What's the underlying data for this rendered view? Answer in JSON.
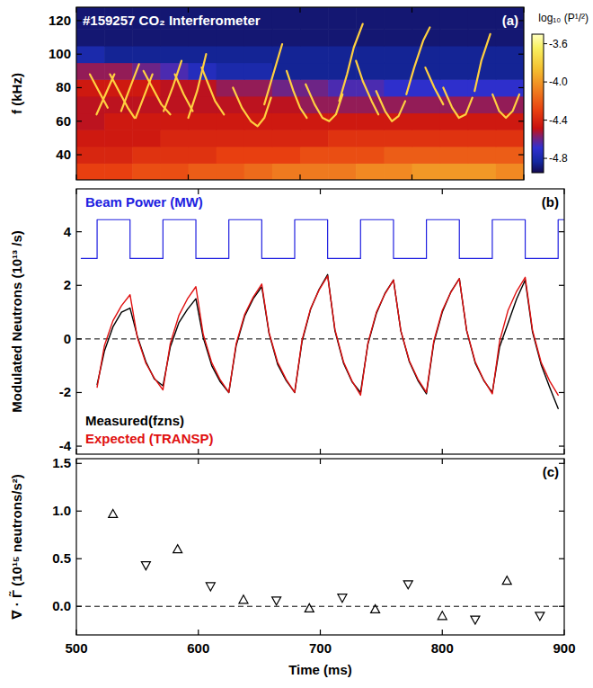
{
  "chart_data": [
    {
      "type": "heatmap",
      "title": "#159257 CO₂ Interferometer",
      "panel_label": "(a)",
      "ylabel": "f (kHz)",
      "xlim": [
        500,
        900
      ],
      "xticks": [
        500,
        600,
        700,
        800,
        900
      ],
      "ylim": [
        25,
        128
      ],
      "yticks": [
        40,
        60,
        80,
        100,
        120
      ],
      "tick_labels": "y",
      "x_edges": [
        500,
        525,
        550,
        575,
        600,
        625,
        650,
        675,
        700,
        725,
        750,
        775,
        800,
        825,
        850,
        875,
        900
      ],
      "y_edges": [
        25,
        35,
        45,
        55,
        65,
        75,
        85,
        95,
        105,
        115,
        128
      ],
      "cells": [
        [
          -4.3,
          -4.3,
          -4.25,
          -4.25,
          -4.2,
          -4.2,
          -4.15,
          -4.1,
          -4.1,
          -4.1,
          -4.05,
          -4.05,
          -4.0,
          -4.0,
          -4.0,
          -4.05
        ],
        [
          -4.4,
          -4.4,
          -4.35,
          -4.35,
          -4.35,
          -4.3,
          -4.3,
          -4.3,
          -4.25,
          -4.25,
          -4.25,
          -4.2,
          -4.2,
          -4.2,
          -4.2,
          -4.2
        ],
        [
          -4.45,
          -4.45,
          -4.45,
          -4.4,
          -4.4,
          -4.4,
          -4.4,
          -4.4,
          -4.4,
          -4.35,
          -4.35,
          -4.35,
          -4.35,
          -4.35,
          -4.35,
          -4.35
        ],
        [
          -4.5,
          -4.45,
          -4.45,
          -4.45,
          -4.45,
          -4.45,
          -4.45,
          -4.45,
          -4.45,
          -4.45,
          -4.45,
          -4.45,
          -4.45,
          -4.45,
          -4.45,
          -4.45
        ],
        [
          -4.5,
          -4.5,
          -4.5,
          -4.5,
          -4.5,
          -4.5,
          -4.5,
          -4.5,
          -4.55,
          -4.55,
          -4.55,
          -4.55,
          -4.55,
          -4.55,
          -4.55,
          -4.55
        ],
        [
          -4.45,
          -4.45,
          -4.45,
          -4.5,
          -4.5,
          -4.55,
          -4.55,
          -4.6,
          -4.6,
          -4.65,
          -4.65,
          -4.7,
          -4.7,
          -4.7,
          -4.7,
          -4.7
        ],
        [
          -4.55,
          -4.55,
          -4.6,
          -4.65,
          -4.75,
          -4.8,
          -4.8,
          -4.85,
          -4.85,
          -4.85,
          -4.85,
          -4.85,
          -4.85,
          -4.85,
          -4.85,
          -4.85
        ],
        [
          -4.8,
          -4.85,
          -4.85,
          -4.85,
          -4.85,
          -4.85,
          -4.85,
          -4.85,
          -4.85,
          -4.85,
          -4.85,
          -4.85,
          -4.85,
          -4.85,
          -4.85,
          -4.85
        ],
        [
          -4.9,
          -4.9,
          -4.9,
          -4.9,
          -4.9,
          -4.9,
          -4.9,
          -4.9,
          -4.9,
          -4.9,
          -4.9,
          -4.9,
          -4.9,
          -4.9,
          -4.9,
          -4.9
        ],
        [
          -4.9,
          -4.9,
          -4.9,
          -4.9,
          -4.9,
          -4.9,
          -4.9,
          -4.9,
          -4.9,
          -4.9,
          -4.9,
          -4.9,
          -4.9,
          -4.9,
          -4.9,
          -4.9
        ]
      ],
      "colorbar_label": "log₁₀ (P¹/²)",
      "colorbar_range": [
        -4.95,
        -3.5
      ],
      "colorbar_ticks": [
        -3.6,
        {
          "value": -4,
          "label": "-4.0"
        },
        -4.4,
        -4.8
      ],
      "series": [
        {
          "type": "line",
          "color": "#ffd040",
          "x": [
            512,
            520,
            528
          ],
          "values": [
            88,
            78,
            68
          ]
        },
        {
          "type": "line",
          "color": "#ffd040",
          "x": [
            518,
            526,
            534
          ],
          "values": [
            64,
            76,
            88
          ]
        },
        {
          "type": "line",
          "color": "#ffd040",
          "x": [
            530,
            538,
            546,
            552
          ],
          "values": [
            88,
            78,
            68,
            62
          ]
        },
        {
          "type": "line",
          "color": "#ffd040",
          "x": [
            540,
            548,
            556
          ],
          "values": [
            66,
            80,
            94
          ]
        },
        {
          "type": "line",
          "color": "#ffd040",
          "x": [
            553,
            560,
            568
          ],
          "values": [
            62,
            74,
            88
          ]
        },
        {
          "type": "line",
          "color": "#ffd040",
          "x": [
            560,
            568,
            576,
            584
          ],
          "values": [
            90,
            80,
            70,
            64
          ]
        },
        {
          "type": "line",
          "color": "#ffd040",
          "x": [
            578,
            586,
            594
          ],
          "values": [
            66,
            80,
            96
          ]
        },
        {
          "type": "line",
          "color": "#ffd040",
          "x": [
            588,
            596,
            604
          ],
          "values": [
            88,
            76,
            66
          ]
        },
        {
          "type": "line",
          "color": "#ffd040",
          "x": [
            600,
            608,
            616
          ],
          "values": [
            62,
            78,
            100
          ]
        },
        {
          "type": "line",
          "color": "#ffd040",
          "x": [
            612,
            618,
            624,
            632
          ],
          "values": [
            92,
            82,
            72,
            64
          ]
        },
        {
          "type": "line",
          "color": "#ffd040",
          "x": [
            640,
            648,
            656,
            662,
            668,
            674
          ],
          "values": [
            80,
            68,
            60,
            57,
            62,
            74
          ]
        },
        {
          "type": "line",
          "color": "#ffd040",
          "x": [
            668,
            676,
            684
          ],
          "values": [
            70,
            88,
            106
          ]
        },
        {
          "type": "line",
          "color": "#ffd040",
          "x": [
            688,
            694,
            700,
            706
          ],
          "values": [
            90,
            78,
            68,
            62
          ]
        },
        {
          "type": "line",
          "color": "#ffd040",
          "x": [
            705,
            713,
            720,
            726,
            732,
            738
          ],
          "values": [
            82,
            70,
            62,
            60,
            64,
            76
          ]
        },
        {
          "type": "line",
          "color": "#ffd040",
          "x": [
            735,
            742,
            748,
            756
          ],
          "values": [
            72,
            88,
            104,
            118
          ]
        },
        {
          "type": "line",
          "color": "#ffd040",
          "x": [
            750,
            756,
            764,
            770
          ],
          "values": [
            96,
            84,
            72,
            64
          ]
        },
        {
          "type": "line",
          "color": "#ffd040",
          "x": [
            768,
            776,
            782,
            788,
            794
          ],
          "values": [
            78,
            66,
            60,
            63,
            72
          ]
        },
        {
          "type": "line",
          "color": "#ffd040",
          "x": [
            795,
            802,
            810,
            816
          ],
          "values": [
            76,
            92,
            108,
            116
          ]
        },
        {
          "type": "line",
          "color": "#ffd040",
          "x": [
            812,
            820,
            828
          ],
          "values": [
            92,
            80,
            70
          ]
        },
        {
          "type": "line",
          "color": "#ffd040",
          "x": [
            828,
            836,
            842,
            848,
            854
          ],
          "values": [
            80,
            68,
            62,
            64,
            74
          ]
        },
        {
          "type": "line",
          "color": "#ffd040",
          "x": [
            856,
            862,
            870
          ],
          "values": [
            78,
            96,
            112
          ]
        },
        {
          "type": "line",
          "color": "#ffd040",
          "x": [
            872,
            878,
            884,
            890,
            896
          ],
          "values": [
            76,
            66,
            62,
            66,
            76
          ]
        }
      ]
    },
    {
      "type": "line",
      "panel_label": "(b)",
      "ylabel": "Modulated Neutrons (10¹³ /s)",
      "xlim": [
        500,
        900
      ],
      "xticks": [
        500,
        600,
        700,
        800,
        900
      ],
      "ylim": [
        -4.3,
        5.6
      ],
      "yticks": [
        -4,
        -2,
        0,
        2,
        4
      ],
      "tick_labels": "y",
      "hlines": [
        0
      ],
      "legend": "lower left",
      "series": [
        {
          "name": "Beam Power (MW)",
          "color": "#2020e0",
          "line_style": "solid",
          "x": [
            504,
            517,
            517,
            544,
            544,
            571,
            571,
            598,
            598,
            625,
            625,
            652,
            652,
            679,
            679,
            706,
            706,
            733,
            733,
            760,
            760,
            787,
            787,
            814,
            814,
            841,
            841,
            868,
            868,
            895,
            895,
            900
          ],
          "values": [
            3.0,
            3.0,
            4.45,
            4.45,
            3.0,
            3.0,
            4.45,
            4.45,
            3.0,
            3.0,
            4.45,
            4.45,
            3.0,
            3.0,
            4.45,
            4.45,
            3.0,
            3.0,
            4.45,
            4.45,
            3.0,
            3.0,
            4.45,
            4.45,
            3.0,
            3.0,
            4.45,
            4.45,
            3.0,
            3.0,
            4.45,
            4.45
          ]
        },
        {
          "name": "Measured(fzns)",
          "color": "#000000",
          "line_style": "solid",
          "x": [
            517,
            523,
            530,
            537,
            544,
            550,
            557,
            564,
            571,
            577,
            584,
            591,
            598,
            604,
            611,
            618,
            625,
            631,
            638,
            645,
            652,
            658,
            665,
            672,
            679,
            685,
            692,
            699,
            706,
            712,
            719,
            726,
            733,
            739,
            746,
            753,
            760,
            766,
            773,
            780,
            787,
            793,
            800,
            807,
            814,
            820,
            827,
            834,
            841,
            847,
            854,
            861,
            868,
            874,
            881,
            888,
            895
          ],
          "values": [
            -1.7,
            -0.45,
            0.45,
            1.0,
            1.15,
            0.1,
            -0.85,
            -1.5,
            -1.75,
            -0.3,
            0.6,
            1.1,
            1.5,
            0.05,
            -1.0,
            -1.6,
            -2.0,
            -0.25,
            0.85,
            1.5,
            1.95,
            0.2,
            -0.95,
            -1.55,
            -2.0,
            -0.1,
            1.1,
            1.85,
            2.4,
            0.3,
            -0.9,
            -1.6,
            -2.0,
            -0.2,
            0.95,
            1.7,
            2.2,
            0.3,
            -0.85,
            -1.55,
            -2.05,
            -0.15,
            1.0,
            1.75,
            2.25,
            0.3,
            -0.9,
            -1.55,
            -2.0,
            -0.3,
            0.6,
            1.5,
            2.2,
            0.25,
            -0.95,
            -1.8,
            -2.6
          ]
        },
        {
          "name": "Expected (TRANSP)",
          "color": "#e01010",
          "line_style": "solid",
          "x": [
            517,
            523,
            530,
            537,
            544,
            550,
            557,
            564,
            571,
            577,
            584,
            591,
            598,
            604,
            611,
            618,
            625,
            631,
            638,
            645,
            652,
            658,
            665,
            672,
            679,
            685,
            692,
            699,
            706,
            712,
            719,
            726,
            733,
            739,
            746,
            753,
            760,
            766,
            773,
            780,
            787,
            793,
            800,
            807,
            814,
            820,
            827,
            834,
            841,
            847,
            854,
            861,
            868,
            874,
            881,
            888,
            895
          ],
          "values": [
            -1.8,
            -0.25,
            0.68,
            1.24,
            1.65,
            0.05,
            -0.91,
            -1.47,
            -1.9,
            -0.17,
            0.87,
            1.49,
            1.95,
            0.17,
            -0.89,
            -1.53,
            -2.0,
            -0.18,
            0.92,
            1.56,
            2.05,
            0.23,
            -0.87,
            -1.51,
            -2.0,
            -0.04,
            1.13,
            1.83,
            2.35,
            0.35,
            -0.85,
            -1.57,
            -2.1,
            -0.16,
            1.0,
            1.68,
            2.2,
            0.31,
            -0.82,
            -1.5,
            -2.0,
            -0.09,
            1.06,
            1.74,
            2.25,
            0.32,
            -0.85,
            -1.53,
            -2.05,
            -0.09,
            1.08,
            1.78,
            2.3,
            0.32,
            -0.87,
            -1.57,
            -2.1
          ]
        }
      ]
    },
    {
      "type": "scatter",
      "panel_label": "(c)",
      "xlabel": "Time (ms)",
      "ylabel": "∇ · Γ̃ (10¹⁵ neutrons/s²)",
      "xlim": [
        500,
        900
      ],
      "xticks": [
        500,
        600,
        700,
        800,
        900
      ],
      "ylim": [
        -0.3,
        1.55
      ],
      "yticks": [
        {
          "value": 0,
          "label": "0.0"
        },
        0.5,
        {
          "value": 1,
          "label": "1.0"
        },
        1.5
      ],
      "hlines": [
        0
      ],
      "series": [
        {
          "marker": "triangle-up",
          "color": "#000000",
          "x": [
            530,
            583,
            637,
            691,
            745,
            800,
            853
          ],
          "values": [
            0.97,
            0.6,
            0.07,
            -0.02,
            -0.03,
            -0.1,
            0.27
          ]
        },
        {
          "marker": "triangle-down",
          "color": "#000000",
          "x": [
            557,
            610,
            664,
            718,
            772,
            827,
            880
          ],
          "values": [
            0.43,
            0.21,
            0.06,
            0.09,
            0.23,
            -0.14,
            -0.1
          ]
        }
      ]
    }
  ]
}
